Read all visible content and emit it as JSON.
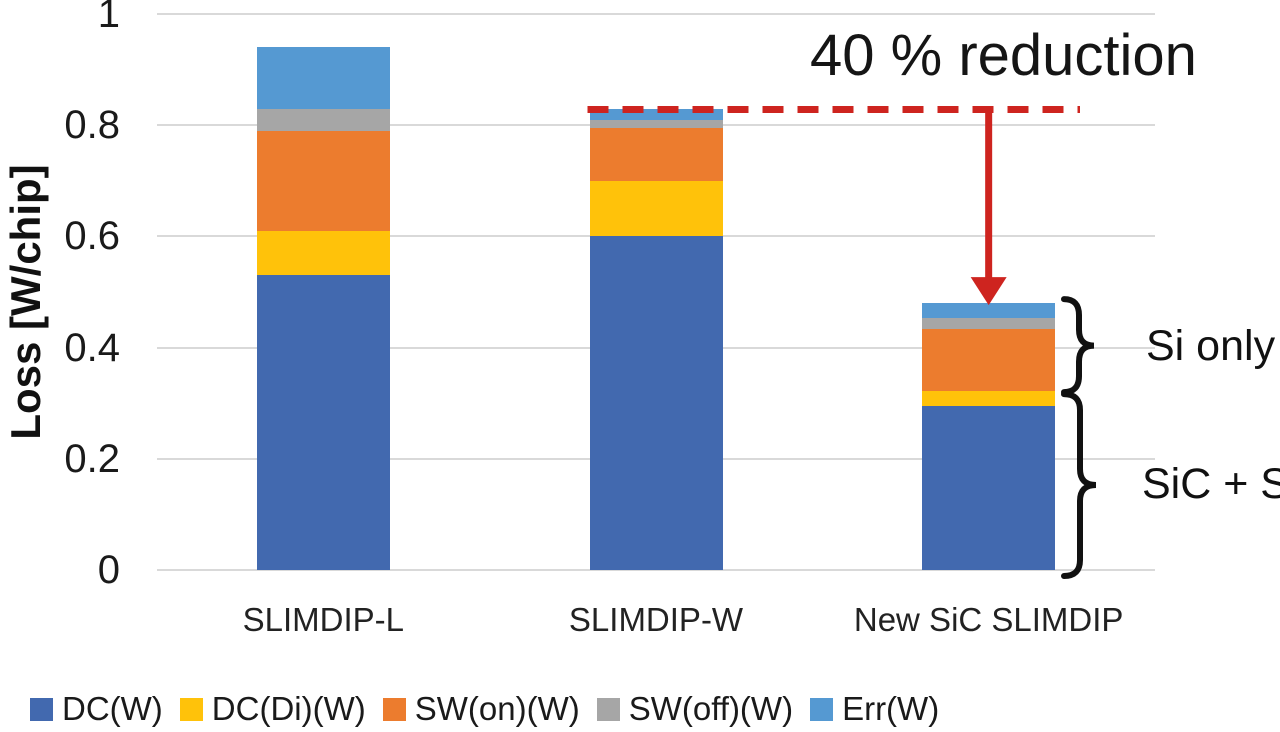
{
  "chart_data": {
    "type": "bar",
    "subtype": "stacked",
    "title": "",
    "ylabel": "Loss [W/chip]",
    "xlabel": "",
    "ylim": [
      0,
      1
    ],
    "yticks": [
      0,
      0.2,
      0.4,
      0.6,
      0.8,
      1
    ],
    "ytick_labels": [
      "0",
      "0.2",
      "0.4",
      "0.6",
      "0.8",
      "1"
    ],
    "grid": true,
    "legend_position": "bottom",
    "categories": [
      "SLIMDIP-L",
      "SLIMDIP-W",
      "New SiC SLIMDIP"
    ],
    "series": [
      {
        "name": "DC(W)",
        "color": "#4269af",
        "values": [
          0.53,
          0.6,
          0.295
        ]
      },
      {
        "name": "DC(Di)(W)",
        "color": "#ffc20a",
        "values": [
          0.08,
          0.1,
          0.027
        ]
      },
      {
        "name": "SW(on)(W)",
        "color": "#ec7c2e",
        "values": [
          0.18,
          0.095,
          0.112
        ]
      },
      {
        "name": "SW(off)(W)",
        "color": "#a6a6a6",
        "values": [
          0.04,
          0.015,
          0.02
        ]
      },
      {
        "name": "Err(W)",
        "color": "#5599d2",
        "values": [
          0.11,
          0.02,
          0.026
        ]
      }
    ],
    "totals": [
      0.94,
      0.83,
      0.48
    ],
    "annotations": {
      "reduction_label": "40 % reduction",
      "reference_value": 0.83,
      "reference_bar": "SLIMDIP-W",
      "arrow_target_bar": "New SiC SLIMDIP",
      "arrow_target_value": 0.48,
      "brace_split_value": 0.32,
      "brace_labels": [
        "Si only",
        "SiC + Si"
      ],
      "dashed_line_color": "#ce241f",
      "arrow_color": "#ce241f",
      "brace_color": "#111111"
    }
  }
}
